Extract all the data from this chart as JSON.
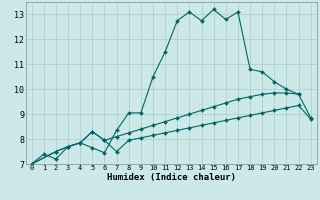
{
  "xlabel": "Humidex (Indice chaleur)",
  "bg_color": "#cce8e8",
  "line_color": "#006666",
  "grid_color_major": "#aacccc",
  "grid_color_minor": "#bbdddd",
  "xlim": [
    -0.5,
    23.5
  ],
  "ylim": [
    7,
    13.5
  ],
  "xticks": [
    0,
    1,
    2,
    3,
    4,
    5,
    6,
    7,
    8,
    9,
    10,
    11,
    12,
    13,
    14,
    15,
    16,
    17,
    18,
    19,
    20,
    21,
    22,
    23
  ],
  "yticks": [
    7,
    8,
    9,
    10,
    11,
    12,
    13
  ],
  "line1_x": [
    0,
    1,
    2,
    3,
    4,
    5,
    6,
    7,
    8,
    9,
    10,
    11,
    12,
    13,
    14,
    15,
    16,
    17,
    18,
    19,
    20,
    21,
    22
  ],
  "line1_y": [
    7.0,
    7.4,
    7.2,
    7.7,
    7.85,
    7.65,
    7.45,
    8.35,
    9.05,
    9.05,
    10.5,
    11.5,
    12.75,
    13.1,
    12.75,
    13.2,
    12.8,
    13.1,
    10.8,
    10.7,
    10.3,
    10.0,
    9.8
  ],
  "line2_x": [
    0,
    2,
    3,
    4,
    5,
    6,
    7,
    8,
    9,
    10,
    11,
    12,
    13,
    14,
    15,
    16,
    17,
    18,
    19,
    20,
    21,
    22,
    23
  ],
  "line2_y": [
    7.0,
    7.5,
    7.7,
    7.85,
    8.3,
    7.95,
    8.1,
    8.25,
    8.4,
    8.55,
    8.7,
    8.85,
    9.0,
    9.15,
    9.3,
    9.45,
    9.6,
    9.7,
    9.8,
    9.85,
    9.85,
    9.8,
    8.85
  ],
  "line3_x": [
    0,
    2,
    3,
    4,
    5,
    6,
    7,
    8,
    9,
    10,
    11,
    12,
    13,
    14,
    15,
    16,
    17,
    18,
    19,
    20,
    21,
    22,
    23
  ],
  "line3_y": [
    7.0,
    7.5,
    7.7,
    7.85,
    8.3,
    7.95,
    7.5,
    7.95,
    8.05,
    8.15,
    8.25,
    8.35,
    8.45,
    8.55,
    8.65,
    8.75,
    8.85,
    8.95,
    9.05,
    9.15,
    9.25,
    9.35,
    8.8
  ],
  "markersize": 2.0,
  "linewidth": 0.8
}
